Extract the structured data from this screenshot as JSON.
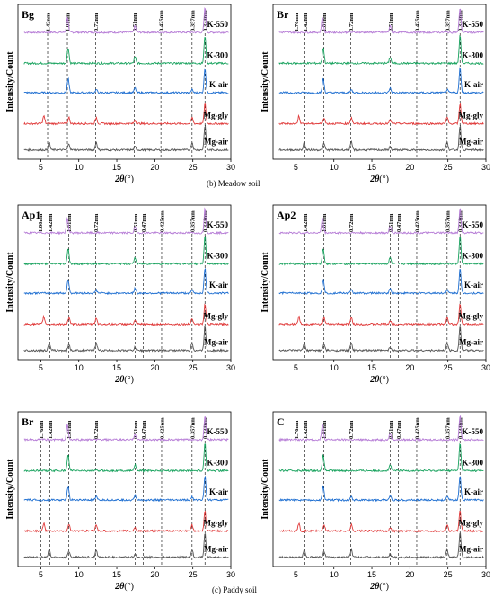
{
  "figure": {
    "caption_meadow": "(b) Meadow soil",
    "caption_paddy": "(c) Paddy soil",
    "ylabel": "Intensity/Count",
    "xlabel_symbol": "2θ",
    "xlabel_unit": "(°)"
  },
  "colors": {
    "K-550": "#b67cd6",
    "K-300": "#1aa35f",
    "K-air": "#1f6fd1",
    "Mg-gly": "#e03a3a",
    "Mg-air": "#555555"
  },
  "chart_data": [
    {
      "type": "line",
      "panel": "Bg",
      "xlim": [
        2,
        30
      ],
      "xticks": [
        5,
        10,
        15,
        20,
        25,
        30
      ],
      "series": [
        {
          "name": "K-550",
          "color": "#b67cd6"
        },
        {
          "name": "K-300",
          "color": "#1aa35f"
        },
        {
          "name": "K-air",
          "color": "#1f6fd1"
        },
        {
          "name": "Mg-gly",
          "color": "#e03a3a"
        },
        {
          "name": "Mg-air",
          "color": "#555555"
        }
      ],
      "reference_lines": [
        {
          "label": "1.42nm",
          "x": 5.9
        },
        {
          "label": "1.01nm",
          "x": 8.5
        },
        {
          "label": "0.72nm",
          "x": 12.2
        },
        {
          "label": "0.51nm",
          "x": 17.3
        },
        {
          "label": "0.425nm",
          "x": 20.8
        },
        {
          "label": "0.357nm",
          "x": 24.9
        },
        {
          "label": "0.334nm",
          "x": 26.6
        }
      ]
    },
    {
      "type": "line",
      "panel": "Br",
      "xlim": [
        2,
        30
      ],
      "xticks": [
        5,
        10,
        15,
        20,
        25,
        30
      ],
      "series": [
        {
          "name": "K-550",
          "color": "#b67cd6"
        },
        {
          "name": "K-300",
          "color": "#1aa35f"
        },
        {
          "name": "K-air",
          "color": "#1f6fd1"
        },
        {
          "name": "Mg-gly",
          "color": "#e03a3a"
        },
        {
          "name": "Mg-air",
          "color": "#555555"
        }
      ],
      "reference_lines": [
        {
          "label": "1.76nm",
          "x": 5.0
        },
        {
          "label": "1.42nm",
          "x": 6.2
        },
        {
          "label": "1.01nm",
          "x": 8.7
        },
        {
          "label": "0.72nm",
          "x": 12.2
        },
        {
          "label": "0.51nm",
          "x": 17.4
        },
        {
          "label": "0.425nm",
          "x": 20.9
        },
        {
          "label": "0.357nm",
          "x": 24.9
        },
        {
          "label": "0.334nm",
          "x": 26.6
        }
      ]
    },
    {
      "type": "line",
      "panel": "Ap1",
      "xlim": [
        2,
        30
      ],
      "xticks": [
        5,
        10,
        15,
        20,
        25,
        30
      ],
      "series": [
        {
          "name": "K-550",
          "color": "#b67cd6"
        },
        {
          "name": "K-300",
          "color": "#1aa35f"
        },
        {
          "name": "K-air",
          "color": "#1f6fd1"
        },
        {
          "name": "Mg-gly",
          "color": "#e03a3a"
        },
        {
          "name": "Mg-air",
          "color": "#555555"
        }
      ],
      "reference_lines": [
        {
          "label": "1.80nm",
          "x": 4.9
        },
        {
          "label": "1.42nm",
          "x": 6.2
        },
        {
          "label": "1.01nm",
          "x": 8.7
        },
        {
          "label": "0.72nm",
          "x": 12.2
        },
        {
          "label": "0.51nm",
          "x": 17.4
        },
        {
          "label": "0.47nm",
          "x": 18.5
        },
        {
          "label": "0.425nm",
          "x": 20.9
        },
        {
          "label": "0.357nm",
          "x": 24.9
        },
        {
          "label": "0.334nm",
          "x": 26.6
        }
      ]
    },
    {
      "type": "line",
      "panel": "Ap2",
      "xlim": [
        2,
        30
      ],
      "xticks": [
        5,
        10,
        15,
        20,
        25,
        30
      ],
      "series": [
        {
          "name": "K-550",
          "color": "#b67cd6"
        },
        {
          "name": "K-300",
          "color": "#1aa35f"
        },
        {
          "name": "K-air",
          "color": "#1f6fd1"
        },
        {
          "name": "Mg-gly",
          "color": "#e03a3a"
        },
        {
          "name": "Mg-air",
          "color": "#555555"
        }
      ],
      "reference_lines": [
        {
          "label": "1.42nm",
          "x": 6.2
        },
        {
          "label": "1.01nm",
          "x": 8.7
        },
        {
          "label": "0.72nm",
          "x": 12.2
        },
        {
          "label": "0.51nm",
          "x": 17.4
        },
        {
          "label": "0.47nm",
          "x": 18.5
        },
        {
          "label": "0.425nm",
          "x": 20.9
        },
        {
          "label": "0.357nm",
          "x": 24.9
        },
        {
          "label": "0.334nm",
          "x": 26.6
        }
      ]
    },
    {
      "type": "line",
      "panel": "Br",
      "xlim": [
        2,
        30
      ],
      "xticks": [
        5,
        10,
        15,
        20,
        25,
        30
      ],
      "series": [
        {
          "name": "K-550",
          "color": "#b67cd6"
        },
        {
          "name": "K-300",
          "color": "#1aa35f"
        },
        {
          "name": "K-air",
          "color": "#1f6fd1"
        },
        {
          "name": "Mg-gly",
          "color": "#e03a3a"
        },
        {
          "name": "Mg-air",
          "color": "#555555"
        }
      ],
      "reference_lines": [
        {
          "label": "1.76nm",
          "x": 5.0
        },
        {
          "label": "1.42nm",
          "x": 6.2
        },
        {
          "label": "1.01nm",
          "x": 8.7
        },
        {
          "label": "0.72nm",
          "x": 12.2
        },
        {
          "label": "0.51nm",
          "x": 17.4
        },
        {
          "label": "0.47nm",
          "x": 18.5
        },
        {
          "label": "0.425nm",
          "x": 20.9
        },
        {
          "label": "0.357nm",
          "x": 24.9
        },
        {
          "label": "0.334nm",
          "x": 26.6
        }
      ]
    },
    {
      "type": "line",
      "panel": "C",
      "xlim": [
        2,
        30
      ],
      "xticks": [
        5,
        10,
        15,
        20,
        25,
        30
      ],
      "series": [
        {
          "name": "K-550",
          "color": "#b67cd6"
        },
        {
          "name": "K-300",
          "color": "#1aa35f"
        },
        {
          "name": "K-air",
          "color": "#1f6fd1"
        },
        {
          "name": "Mg-gly",
          "color": "#e03a3a"
        },
        {
          "name": "Mg-air",
          "color": "#555555"
        }
      ],
      "reference_lines": [
        {
          "label": "1.76nm",
          "x": 5.0
        },
        {
          "label": "1.42nm",
          "x": 6.2
        },
        {
          "label": "1.01nm",
          "x": 8.7
        },
        {
          "label": "0.72nm",
          "x": 12.2
        },
        {
          "label": "0.51nm",
          "x": 17.4
        },
        {
          "label": "0.47nm",
          "x": 18.5
        },
        {
          "label": "0.425nm",
          "x": 20.9
        },
        {
          "label": "0.357nm",
          "x": 24.9
        },
        {
          "label": "0.334nm",
          "x": 26.6
        }
      ]
    }
  ]
}
